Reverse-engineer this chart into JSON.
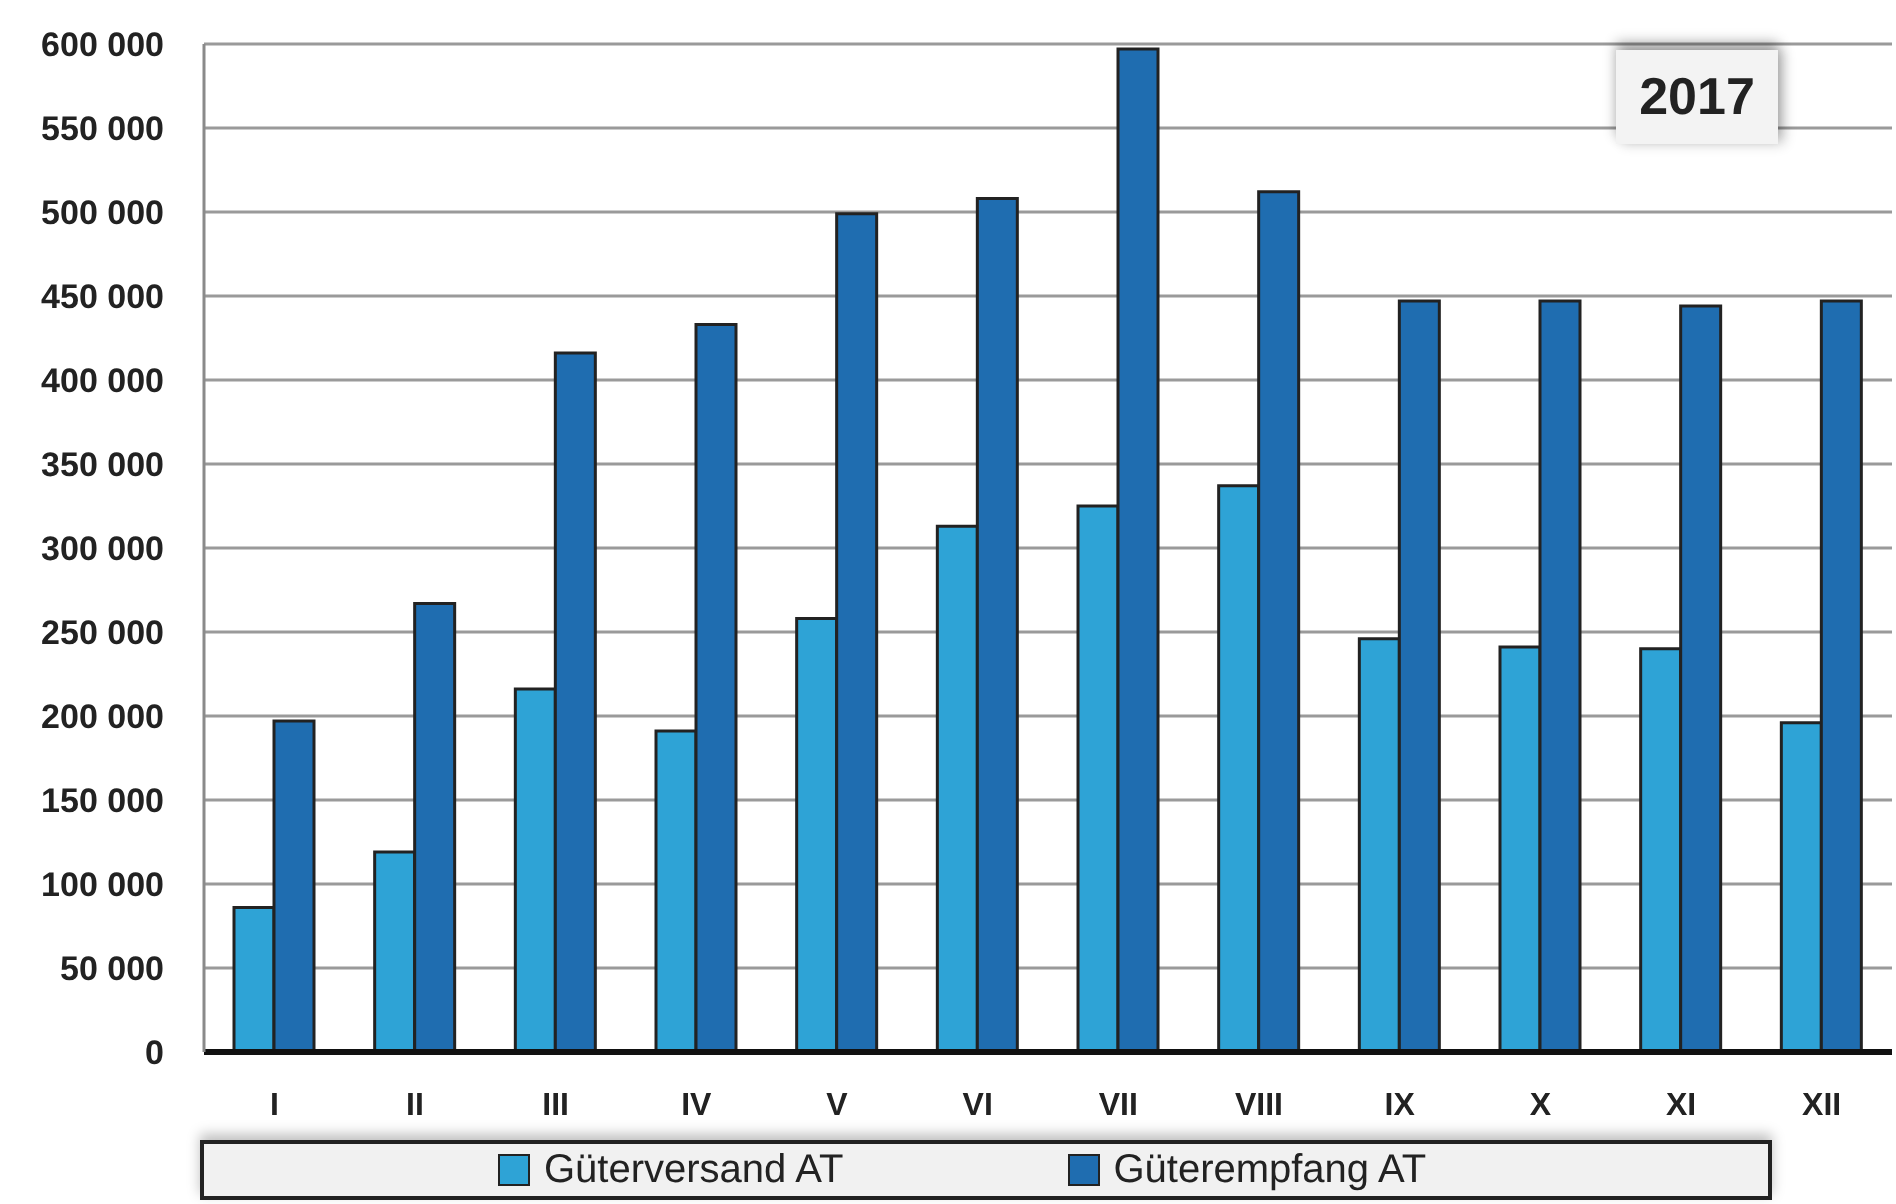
{
  "chart_data": {
    "type": "bar",
    "categories": [
      "I",
      "II",
      "III",
      "IV",
      "V",
      "VI",
      "VII",
      "VIII",
      "IX",
      "X",
      "XI",
      "XII"
    ],
    "series": [
      {
        "name": "Güterversand AT",
        "color": "#2ea3d6",
        "values": [
          86000,
          119000,
          216000,
          191000,
          258000,
          313000,
          325000,
          337000,
          246000,
          241000,
          240000,
          196000
        ]
      },
      {
        "name": "Güterempfang AT",
        "color": "#1f6db0",
        "values": [
          197000,
          267000,
          416000,
          433000,
          499000,
          508000,
          597000,
          512000,
          447000,
          447000,
          444000,
          447000
        ]
      }
    ],
    "ylim": [
      0,
      600000
    ],
    "yticks": [
      0,
      {
        "value": 50000,
        "label": "50 000"
      },
      {
        "value": 100000,
        "label": "100 000"
      },
      {
        "value": 150000,
        "label": "150 000"
      },
      {
        "value": 200000,
        "label": "200 000"
      },
      {
        "value": 250000,
        "label": "250 000"
      },
      {
        "value": 300000,
        "label": "300 000"
      },
      {
        "value": 350000,
        "label": "350 000"
      },
      {
        "value": 400000,
        "label": "400 000"
      },
      {
        "value": 450000,
        "label": "450 000"
      },
      {
        "value": 500000,
        "label": "500 000"
      },
      {
        "value": 550000,
        "label": "550 000"
      },
      {
        "value": 600000,
        "label": "600 000"
      }
    ],
    "grid": "y",
    "legend": "bottom",
    "annotations": [
      "2017"
    ]
  }
}
